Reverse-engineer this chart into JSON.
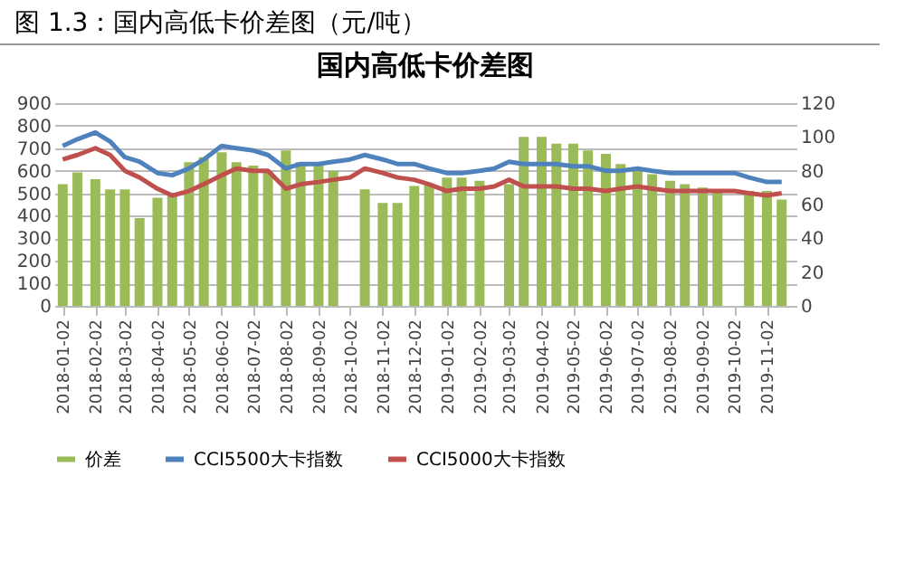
{
  "chart_data": {
    "type": "bar",
    "title": "国内高低卡价差图",
    "annotations": [
      "图 1.3：国内高低卡价差图（元/吨）"
    ],
    "x": [
      "2018-01-02",
      "2018-01-16",
      "2018-02-02",
      "2018-02-16",
      "2018-03-02",
      "2018-03-16",
      "2018-04-02",
      "2018-04-16",
      "2018-05-02",
      "2018-05-16",
      "2018-06-02",
      "2018-06-16",
      "2018-07-02",
      "2018-07-16",
      "2018-08-02",
      "2018-08-16",
      "2018-09-02",
      "2018-09-16",
      "2018-10-02",
      "2018-10-16",
      "2018-11-02",
      "2018-11-16",
      "2018-12-02",
      "2018-12-16",
      "2019-01-02",
      "2019-01-16",
      "2019-02-02",
      "2019-02-16",
      "2019-03-02",
      "2019-03-16",
      "2019-04-02",
      "2019-04-16",
      "2019-05-02",
      "2019-05-16",
      "2019-06-02",
      "2019-06-16",
      "2019-07-02",
      "2019-07-16",
      "2019-08-02",
      "2019-08-16",
      "2019-09-02",
      "2019-09-16",
      "2019-10-02",
      "2019-10-16",
      "2019-11-02",
      "2019-11-16"
    ],
    "series": [
      {
        "name": "价差",
        "axis": "y2",
        "color": "#9bbb59",
        "values": [
          72,
          79,
          75,
          69,
          69,
          52,
          64,
          67,
          85,
          88,
          91,
          85,
          83,
          80,
          92,
          85,
          83,
          80,
          null,
          69,
          61,
          61,
          71,
          72,
          76,
          76,
          74,
          null,
          72,
          100,
          100,
          96,
          96,
          92,
          90,
          84,
          80,
          78,
          74,
          72,
          70,
          68,
          null,
          68,
          68,
          63
        ]
      },
      {
        "name": "CCI5500大卡指数",
        "type": "line",
        "axis": "y",
        "color": "#4f81bd",
        "values": [
          710,
          740,
          770,
          730,
          660,
          640,
          590,
          580,
          610,
          650,
          710,
          700,
          690,
          670,
          610,
          630,
          630,
          640,
          650,
          670,
          650,
          630,
          630,
          610,
          590,
          590,
          600,
          610,
          640,
          630,
          630,
          630,
          620,
          620,
          600,
          600,
          610,
          600,
          590,
          590,
          590,
          590,
          590,
          570,
          550,
          550
        ]
      },
      {
        "name": "CCI5000大卡指数",
        "type": "line",
        "axis": "y",
        "color": "#c0504d",
        "values": [
          650,
          670,
          700,
          670,
          600,
          570,
          520,
          490,
          510,
          540,
          580,
          610,
          600,
          600,
          520,
          540,
          550,
          560,
          570,
          610,
          590,
          570,
          560,
          540,
          510,
          520,
          520,
          530,
          560,
          530,
          530,
          530,
          520,
          520,
          510,
          520,
          530,
          520,
          510,
          510,
          510,
          510,
          510,
          500,
          490,
          500
        ]
      }
    ],
    "xlim": [
      "2017-12-25",
      "2019-11-30"
    ],
    "xticks": [
      "2018-01-02",
      "2018-02-02",
      "2018-03-02",
      "2018-04-02",
      "2018-05-02",
      "2018-06-02",
      "2018-07-02",
      "2018-08-02",
      "2018-09-02",
      "2018-10-02",
      "2018-11-02",
      "2018-12-02",
      "2019-01-02",
      "2019-02-02",
      "2019-03-02",
      "2019-04-02",
      "2019-05-02",
      "2019-06-02",
      "2019-07-02",
      "2019-08-02",
      "2019-09-02",
      "2019-10-02",
      "2019-11-02"
    ],
    "ylim": [
      0,
      900
    ],
    "yticks": [
      0,
      100,
      200,
      300,
      400,
      500,
      600,
      700,
      800,
      900
    ],
    "y2lim": [
      0,
      120
    ],
    "y2ticks": [
      0,
      20,
      40,
      60,
      80,
      100,
      120
    ],
    "grid": "y",
    "legend": "bottom"
  }
}
